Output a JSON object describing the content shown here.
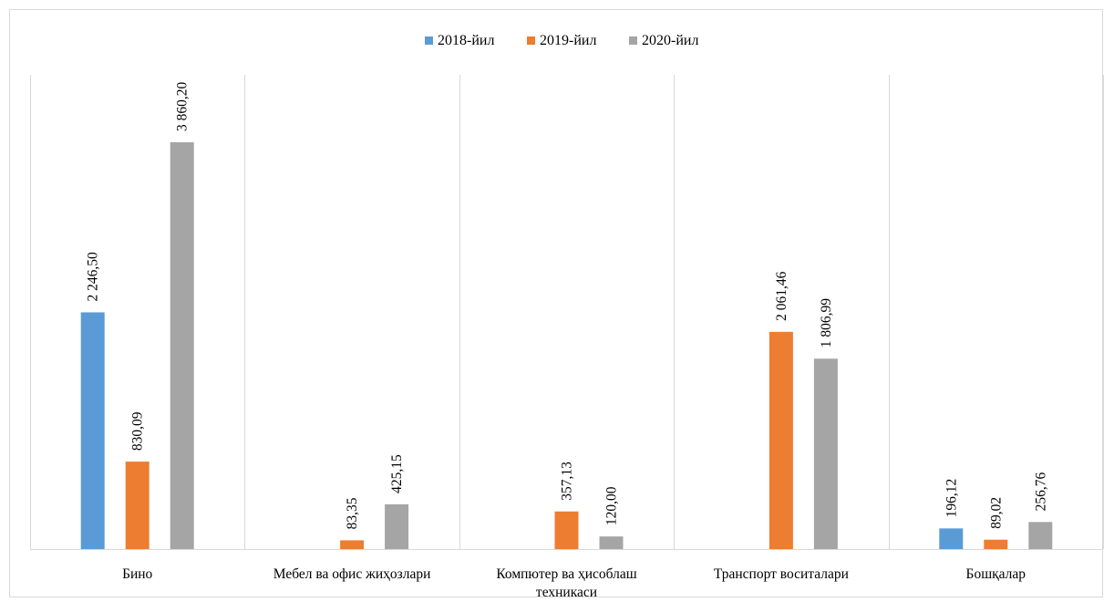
{
  "chart_data": {
    "type": "bar",
    "categories": [
      [
        "Бино"
      ],
      [
        "Мебел ва офис жиҳозлари"
      ],
      [
        "Компютер ва ҳисоблаш",
        "техникаси"
      ],
      [
        "Транспорт  воситалари"
      ],
      [
        "Бошқалар"
      ]
    ],
    "series": [
      {
        "name": "2018-йил",
        "color": "#5B9BD5",
        "values": [
          2246.5,
          null,
          null,
          null,
          196.12
        ],
        "labels": [
          "2 246,50",
          "",
          "",
          "",
          "196,12"
        ]
      },
      {
        "name": "2019-йил",
        "color": "#ED7D31",
        "values": [
          830.09,
          83.35,
          357.13,
          2061.46,
          89.02
        ],
        "labels": [
          "830,09",
          "83,35",
          "357,13",
          "2 061,46",
          "89,02"
        ]
      },
      {
        "name": "2020-йил",
        "color": "#A5A5A5",
        "values": [
          3860.2,
          425.15,
          120.0,
          1806.99,
          256.76
        ],
        "labels": [
          "3 860,20",
          "425,15",
          "120,00",
          "1 806,99",
          "256,76"
        ]
      }
    ],
    "ylim": [
      0,
      4500
    ],
    "legend_position": "top",
    "gridlines": "vertical category separators",
    "axis_color": "#d9d9d9"
  }
}
